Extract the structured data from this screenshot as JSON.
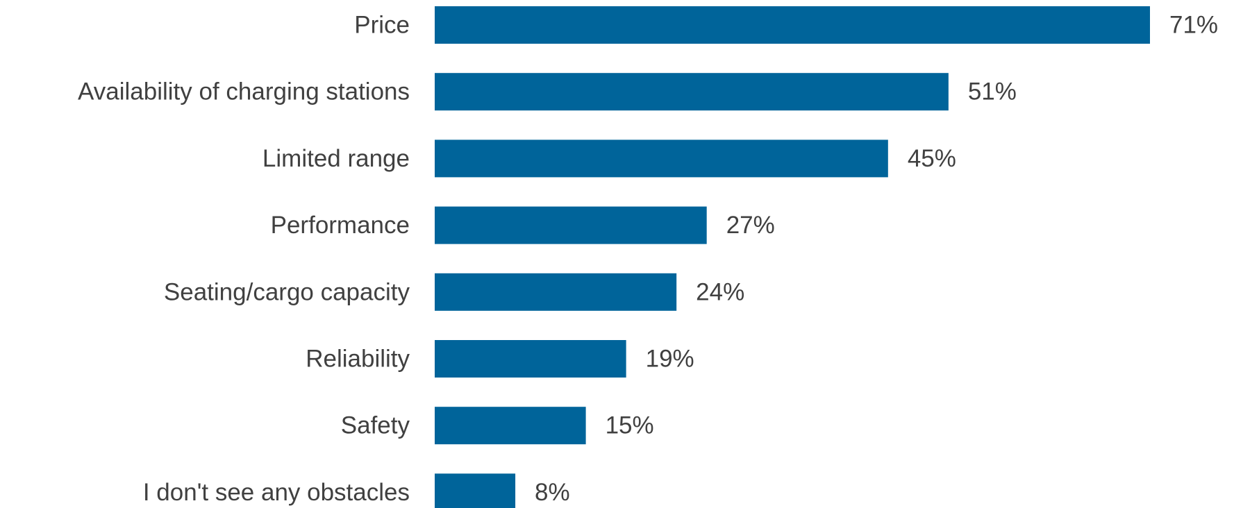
{
  "chart_data": {
    "type": "bar",
    "orientation": "horizontal",
    "title": "",
    "xlabel": "",
    "ylabel": "",
    "categories": [
      "Price",
      "Availability of charging stations",
      "Limited range",
      "Performance",
      "Seating/cargo capacity",
      "Reliability",
      "Safety",
      "I don't see any obstacles"
    ],
    "values": [
      71,
      51,
      45,
      27,
      24,
      19,
      15,
      8
    ],
    "value_labels": [
      "71%",
      "51%",
      "45%",
      "27%",
      "24%",
      "19%",
      "15%",
      "8%"
    ],
    "unit": "%",
    "xlim": [
      0,
      71
    ],
    "grid": false,
    "legend": "none",
    "bar_color": "#00649a",
    "text_color": "#404040"
  }
}
